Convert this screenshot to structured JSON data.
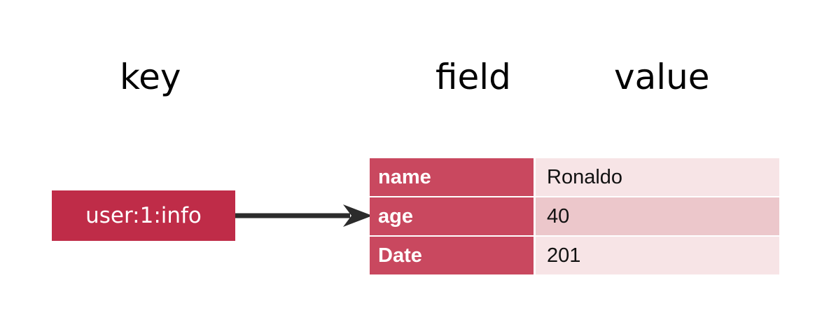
{
  "headers": {
    "key": "key",
    "field": "field",
    "value": "value"
  },
  "key_box": {
    "label": "user:1:info"
  },
  "hash": {
    "rows": [
      {
        "field": "name",
        "value": "Ronaldo"
      },
      {
        "field": "age",
        "value": "40"
      },
      {
        "field": "Date",
        "value": "201"
      }
    ]
  },
  "colors": {
    "key_fill": "#bf2c48",
    "field_fill": "#c9485f",
    "value_fill_light": "#f7e4e6",
    "value_fill_dark": "#ecc7cb",
    "arrow": "#2b2b2b"
  }
}
